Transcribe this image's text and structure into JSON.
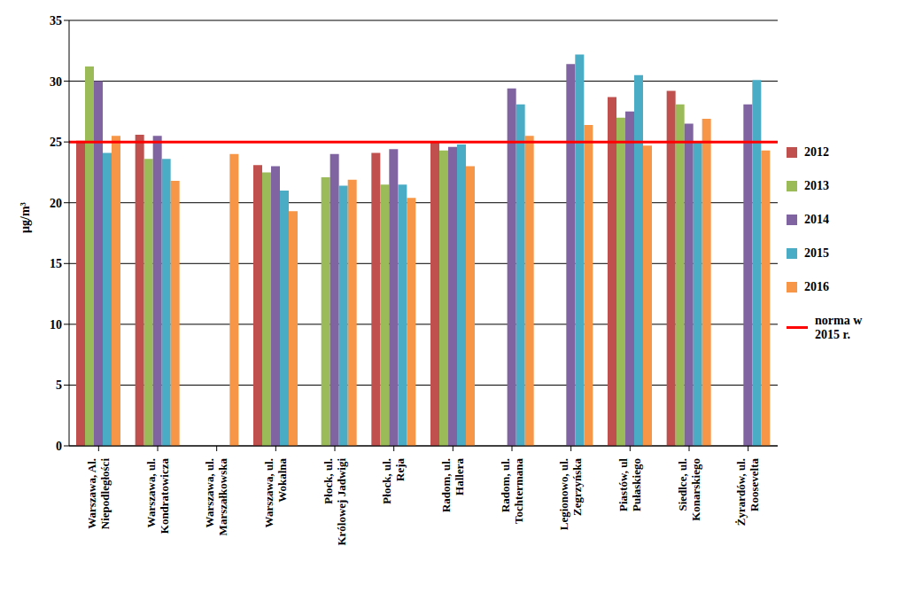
{
  "chart_data": {
    "type": "bar",
    "y_label": "µg/m³",
    "categories": [
      "Warszawa, Al. Niepodległości",
      "Warszawa, ul. Kondratowicza",
      "Warszawa, ul. Marszałkowska",
      "Warszawa, ul. Wokalna",
      "Płock, ul. Królowej Jadwigi",
      "Płock, ul. Reja",
      "Radom, ul. Hallera",
      "Radom, ul. Tochtermana",
      "Legionowo, ul. Zegrzyńska",
      "Piastów, ul Pułaskiego",
      "Siedlce, ul. Konarskiego",
      "Żyrardów, ul. Roosevelta"
    ],
    "series": [
      {
        "name": "2012",
        "color": "#c0504d",
        "values": [
          25.1,
          25.6,
          null,
          23.1,
          null,
          24.1,
          25.0,
          null,
          null,
          28.7,
          29.2,
          null
        ]
      },
      {
        "name": "2013",
        "color": "#9bbb59",
        "values": [
          31.2,
          23.6,
          null,
          22.5,
          22.1,
          21.5,
          24.3,
          null,
          null,
          27.0,
          28.1,
          null
        ]
      },
      {
        "name": "2014",
        "color": "#8064a2",
        "values": [
          30.0,
          25.5,
          null,
          23.0,
          24.0,
          24.4,
          24.6,
          29.4,
          31.4,
          27.5,
          26.5,
          28.1
        ]
      },
      {
        "name": "2015",
        "color": "#4bacc6",
        "values": [
          24.1,
          23.6,
          null,
          21.0,
          21.4,
          21.5,
          24.8,
          28.1,
          32.2,
          30.5,
          25.0,
          30.1
        ]
      },
      {
        "name": "2016",
        "color": "#f79646",
        "values": [
          25.5,
          21.8,
          24.0,
          19.3,
          21.9,
          20.4,
          23.0,
          25.5,
          26.4,
          24.7,
          26.9,
          24.3
        ]
      }
    ],
    "reference_line": {
      "value": 25,
      "label": "norma w 2015 r.",
      "color": "#ff0000"
    },
    "ylim": [
      0,
      35
    ],
    "yticks": [
      0,
      5,
      10,
      15,
      20,
      25,
      30,
      35
    ],
    "grid": true,
    "legend": "right"
  }
}
